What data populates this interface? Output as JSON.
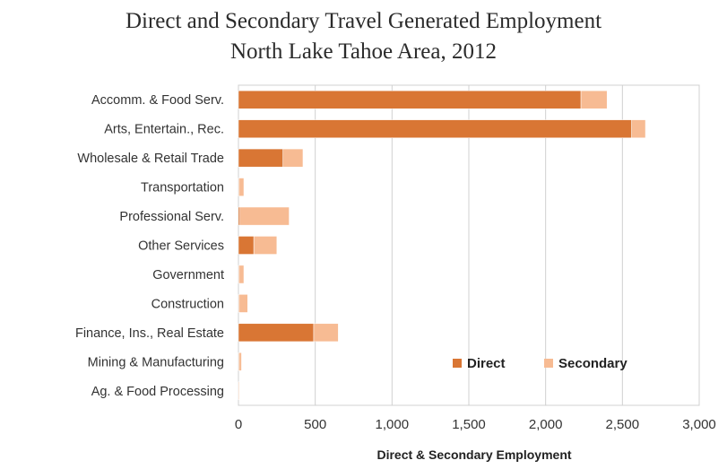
{
  "chart_data": {
    "type": "bar",
    "orientation": "horizontal",
    "stacked": true,
    "title": "Direct and Secondary Travel Generated Employment",
    "subtitle": "North Lake Tahoe Area, 2012",
    "xlabel": "Direct & Secondary Employment",
    "ylabel": "",
    "xlim": [
      0,
      3000
    ],
    "x_ticks": [
      0,
      500,
      1000,
      1500,
      2000,
      2500,
      3000
    ],
    "x_tick_labels": [
      "0",
      "500",
      "1,000",
      "1,500",
      "2,000",
      "2,500",
      "3,000"
    ],
    "grid": true,
    "legend_position": "lower-right",
    "categories": [
      "Accomm. & Food Serv.",
      "Arts, Entertain., Rec.",
      "Wholesale & Retail Trade",
      "Transportation",
      "Professional Serv.",
      "Other Services",
      "Government",
      "Construction",
      "Finance, Ins., Real Estate",
      "Mining & Manufacturing",
      "Ag. & Food Processing"
    ],
    "series": [
      {
        "name": "Direct",
        "color": "#d97634",
        "values": [
          2230,
          2560,
          290,
          5,
          10,
          100,
          5,
          5,
          490,
          5,
          0
        ]
      },
      {
        "name": "Secondary",
        "color": "#f7bb93",
        "values": [
          170,
          90,
          130,
          30,
          320,
          150,
          30,
          55,
          160,
          15,
          5
        ]
      }
    ]
  }
}
